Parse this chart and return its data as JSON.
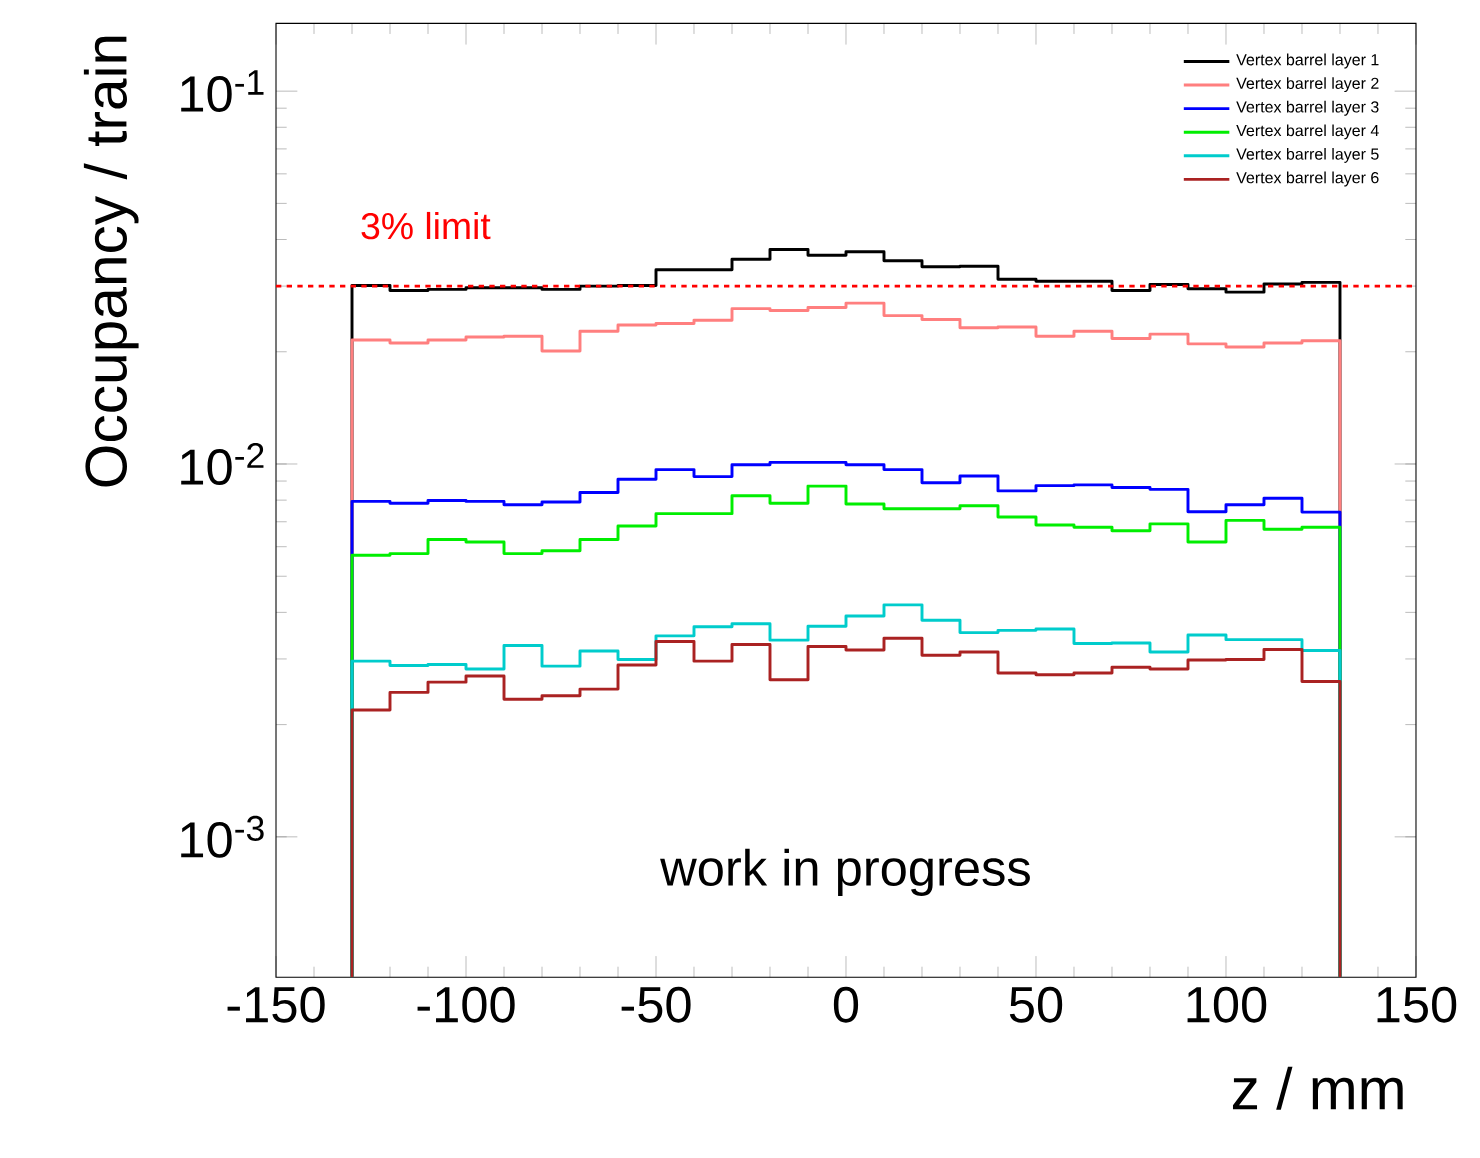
{
  "chart_data": {
    "type": "histogram",
    "xlabel": "z / mm",
    "ylabel": "Occupancy / train",
    "log": "y",
    "legend": "top right",
    "bins": [
      -130,
      -120,
      -110,
      -100,
      -90,
      -80,
      -70,
      -60,
      -50,
      -40,
      -30,
      -20,
      -10,
      0,
      10,
      20,
      30,
      40,
      50,
      60,
      70,
      80,
      90,
      100,
      110,
      120,
      130
    ],
    "xlim": [
      -150,
      150
    ],
    "xticks": [
      -150,
      -100,
      -50,
      0,
      50,
      100,
      150
    ],
    "ylim": [
      0.00042,
      0.152
    ],
    "yticks": [
      {
        "value": 0.001,
        "label": "10$^{-3}$"
      },
      {
        "value": 0.01,
        "label": "10$^{-2}$"
      },
      {
        "value": 0.1,
        "label": "10$^{-1}$"
      }
    ],
    "series": [
      {
        "name": "Vertex barrel layer 1",
        "color": "#000000",
        "values": [
          0.0301,
          0.0292,
          0.0294,
          0.0297,
          0.0297,
          0.0294,
          0.03,
          0.0301,
          0.0332,
          0.0332,
          0.0354,
          0.0376,
          0.0363,
          0.0371,
          0.0351,
          0.0338,
          0.0339,
          0.0313,
          0.0309,
          0.0309,
          0.0292,
          0.0303,
          0.0295,
          0.0289,
          0.0304,
          0.0307
        ]
      },
      {
        "name": "Vertex barrel layer 2",
        "color": "#ff7f7f",
        "values": [
          0.0215,
          0.0211,
          0.0215,
          0.0219,
          0.022,
          0.0201,
          0.0227,
          0.0236,
          0.0238,
          0.0243,
          0.0261,
          0.0258,
          0.0263,
          0.027,
          0.025,
          0.0244,
          0.0232,
          0.0233,
          0.022,
          0.0227,
          0.0217,
          0.0223,
          0.021,
          0.0206,
          0.0211,
          0.0214
        ]
      },
      {
        "name": "Vertex barrel layer 3",
        "color": "#0000ff",
        "values": [
          0.00794,
          0.00785,
          0.00798,
          0.00794,
          0.00778,
          0.00791,
          0.00839,
          0.0091,
          0.00966,
          0.00925,
          0.00995,
          0.0101,
          0.0101,
          0.00995,
          0.00966,
          0.00891,
          0.00929,
          0.00847,
          0.00875,
          0.00879,
          0.00865,
          0.00855,
          0.00745,
          0.00778,
          0.00809,
          0.00743
        ]
      },
      {
        "name": "Vertex barrel layer 4",
        "color": "#00ee00",
        "values": [
          0.00569,
          0.00575,
          0.00627,
          0.00618,
          0.00575,
          0.00585,
          0.00627,
          0.00682,
          0.00736,
          0.00736,
          0.00822,
          0.00785,
          0.00873,
          0.00781,
          0.00759,
          0.00759,
          0.00773,
          0.00721,
          0.00686,
          0.00677,
          0.00662,
          0.00691,
          0.00618,
          0.00706,
          0.00668,
          0.00677
        ]
      },
      {
        "name": "Vertex barrel layer 5",
        "color": "#00cccc",
        "values": [
          0.00296,
          0.00288,
          0.0029,
          0.00282,
          0.00326,
          0.00287,
          0.00315,
          0.00299,
          0.00346,
          0.00366,
          0.00373,
          0.00337,
          0.00367,
          0.00391,
          0.00419,
          0.00381,
          0.00353,
          0.00358,
          0.00361,
          0.0033,
          0.00331,
          0.00313,
          0.00348,
          0.00338,
          0.00338,
          0.00316
        ]
      },
      {
        "name": "Vertex barrel layer 6",
        "color": "#aa2222",
        "values": [
          0.00219,
          0.00244,
          0.0026,
          0.0027,
          0.00234,
          0.00239,
          0.00249,
          0.00289,
          0.00334,
          0.00296,
          0.00328,
          0.00264,
          0.00324,
          0.00317,
          0.00341,
          0.00307,
          0.00313,
          0.00275,
          0.00272,
          0.00275,
          0.00285,
          0.00282,
          0.00298,
          0.00299,
          0.00318,
          0.00261
        ]
      }
    ],
    "ref_lines": [
      {
        "axis": "y",
        "value": 0.03,
        "label": "3% limit",
        "color": "#ff0000",
        "line_style": "dotted"
      }
    ],
    "annotations": [
      "work in progress"
    ]
  }
}
